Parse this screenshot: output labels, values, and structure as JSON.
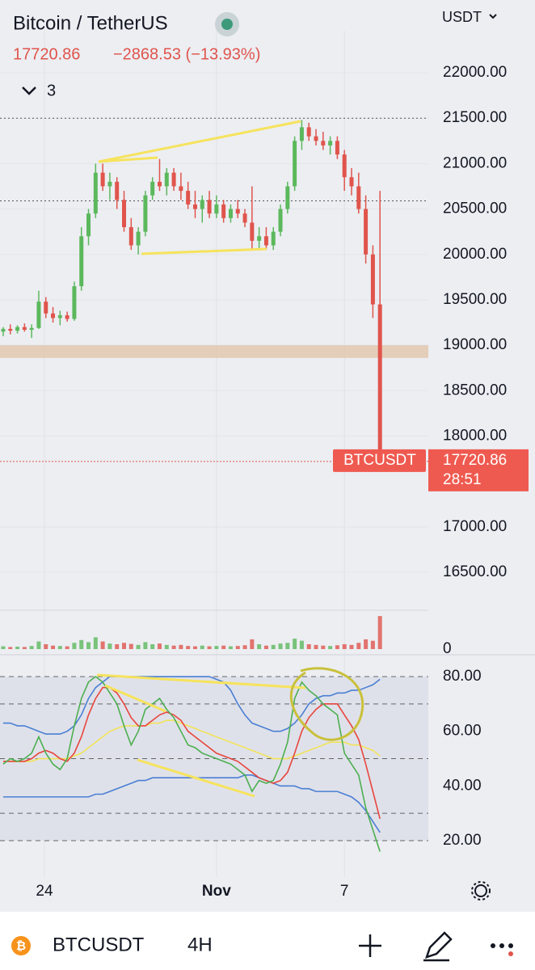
{
  "header": {
    "title": "Bitcoin / TetherUS",
    "change": "−2868.53 (−13.93%)",
    "indicators": "3",
    "currency": "USDT"
  },
  "chart_data": {
    "type": "candlestick",
    "symbol": "BTCUSDT",
    "price_line": 17720.86,
    "countdown": "28:51",
    "ylim": [
      16082,
      22463
    ],
    "yticks": [
      {
        "value": 16500,
        "label": "16500.00"
      },
      {
        "value": 17000,
        "label": "17000.00"
      },
      {
        "value": 18000,
        "label": "18000.00"
      },
      {
        "value": 18500,
        "label": "18500.00"
      },
      {
        "value": 19000,
        "label": "19000.00"
      },
      {
        "value": 19500,
        "label": "19500.00"
      },
      {
        "value": 20000,
        "label": "20000.00"
      },
      {
        "value": 20500,
        "label": "20500.00"
      },
      {
        "value": 21000,
        "label": "21000.00"
      },
      {
        "value": 21500,
        "label": "21500.00"
      },
      {
        "value": 22000,
        "label": "22000.00"
      }
    ],
    "xlim": [
      -0.45,
      59.8
    ],
    "xticks": [
      {
        "value": 5.8,
        "label": "24"
      },
      {
        "value": 30,
        "label": "Nov"
      },
      {
        "value": 48,
        "label": "7"
      }
    ],
    "hlines": [
      21500,
      20590
    ],
    "zone": [
      18860,
      19000
    ],
    "up_color": "#5cb85c",
    "down_color": "#e0544c",
    "x": [
      0,
      1,
      2,
      3,
      4,
      5,
      6,
      7,
      8,
      9,
      10,
      11,
      12,
      13,
      14,
      15,
      16,
      17,
      18,
      19,
      20,
      21,
      22,
      23,
      24,
      25,
      26,
      27,
      28,
      29,
      30,
      31,
      32,
      33,
      34,
      35,
      36,
      37,
      38,
      39,
      40,
      41,
      42,
      43,
      44,
      45,
      46,
      47,
      48,
      49,
      50,
      51,
      52,
      53
    ],
    "open": [
      19150,
      19180,
      19160,
      19200,
      19170,
      19190,
      19480,
      19350,
      19300,
      19330,
      19290,
      19650,
      20200,
      20450,
      20900,
      20750,
      20800,
      20600,
      20300,
      20100,
      20250,
      20650,
      20800,
      20750,
      20900,
      20750,
      20700,
      20550,
      20500,
      20600,
      20450,
      20550,
      20400,
      20500,
      20450,
      20350,
      20150,
      20200,
      20100,
      20250,
      20500,
      20750,
      21250,
      21400,
      21300,
      21250,
      21200,
      21250,
      21100,
      20850,
      20750,
      20500,
      20000,
      19450
    ],
    "high": [
      19200,
      19230,
      19220,
      19240,
      19230,
      19600,
      19530,
      19420,
      19380,
      19370,
      19700,
      20300,
      20500,
      21000,
      21000,
      20900,
      20850,
      20700,
      20400,
      20300,
      20700,
      20850,
      21050,
      20950,
      20950,
      20900,
      20800,
      20700,
      20650,
      20700,
      20650,
      20600,
      20550,
      20600,
      20500,
      20750,
      20300,
      20300,
      20300,
      20550,
      20800,
      21300,
      21480,
      21450,
      21380,
      21350,
      21300,
      21300,
      21150,
      20950,
      20900,
      20650,
      20100,
      20700
    ],
    "low": [
      19100,
      19120,
      19130,
      19150,
      19080,
      19180,
      19300,
      19250,
      19220,
      19260,
      19270,
      19600,
      20100,
      20400,
      20700,
      20600,
      20500,
      20250,
      20050,
      20000,
      20200,
      20600,
      20700,
      20650,
      20700,
      20600,
      20500,
      20400,
      20350,
      20400,
      20400,
      20350,
      20350,
      20400,
      20300,
      20050,
      20050,
      20050,
      20050,
      20200,
      20450,
      20700,
      21150,
      21250,
      21200,
      21150,
      21100,
      21050,
      20700,
      20650,
      20450,
      19900,
      19300,
      17700
    ],
    "close": [
      19180,
      19160,
      19200,
      19170,
      19190,
      19480,
      19350,
      19300,
      19330,
      19290,
      19650,
      20200,
      20450,
      20900,
      20750,
      20800,
      20600,
      20300,
      20100,
      20250,
      20650,
      20800,
      20750,
      20900,
      20750,
      20700,
      20550,
      20500,
      20600,
      20450,
      20550,
      20400,
      20500,
      20450,
      20350,
      20150,
      20200,
      20100,
      20250,
      20500,
      20750,
      21250,
      21400,
      21300,
      21250,
      21200,
      21250,
      21100,
      20850,
      20750,
      20500,
      20000,
      19450,
      17720.86
    ],
    "volume": {
      "ylim": [
        0,
        100
      ],
      "yticks": [
        0
      ],
      "values": [
        8,
        6,
        7,
        6,
        9,
        22,
        14,
        10,
        9,
        8,
        18,
        26,
        20,
        34,
        22,
        16,
        14,
        18,
        15,
        12,
        20,
        14,
        16,
        12,
        10,
        12,
        9,
        8,
        10,
        8,
        9,
        10,
        8,
        9,
        11,
        28,
        14,
        10,
        12,
        16,
        18,
        30,
        24,
        14,
        12,
        10,
        9,
        11,
        14,
        12,
        18,
        28,
        24,
        95
      ]
    },
    "rsi": {
      "type": "line",
      "ylim": [
        6.7,
        87.4
      ],
      "yticks": [
        {
          "value": 20,
          "label": "20.00"
        },
        {
          "value": 40,
          "label": "40.00"
        },
        {
          "value": 60,
          "label": "60.00"
        },
        {
          "value": 80,
          "label": "80.00"
        }
      ],
      "levels": [
        80,
        70,
        50,
        30,
        20
      ],
      "series": [
        {
          "color": "#4a7fd4",
          "values": [
            63,
            63,
            62,
            62,
            61,
            60,
            59,
            59,
            59,
            60,
            62,
            66,
            72,
            76,
            78,
            80,
            80,
            80,
            80,
            80,
            80,
            80,
            80,
            80,
            80,
            80,
            80,
            80,
            80,
            80,
            79,
            78,
            75,
            70,
            66,
            63,
            62,
            61,
            60,
            60,
            61,
            63,
            66,
            70,
            72,
            73,
            73,
            74,
            74,
            75,
            75,
            76,
            77,
            79
          ]
        },
        {
          "color": "#4a7fd4",
          "values": [
            36,
            36,
            36,
            36,
            36,
            36,
            36,
            36,
            36,
            36,
            36,
            36,
            36,
            37,
            37,
            38,
            39,
            40,
            41,
            42,
            42,
            43,
            43,
            43,
            43,
            43,
            43,
            43,
            43,
            43,
            43,
            43,
            43,
            43,
            44,
            44,
            43,
            42,
            41,
            40,
            40,
            40,
            39,
            39,
            38,
            38,
            38,
            38,
            37,
            36,
            34,
            31,
            27,
            23
          ]
        },
        {
          "color": "#f2e35a",
          "values": [
            49,
            49,
            49,
            49,
            49,
            50,
            50,
            50,
            50,
            50,
            51,
            52,
            54,
            56,
            58,
            60,
            61,
            62,
            62,
            62,
            62,
            63,
            63,
            64,
            64,
            63,
            62,
            61,
            60,
            59,
            58,
            57,
            56,
            55,
            54,
            53,
            52,
            51,
            50,
            50,
            50,
            51,
            52,
            53,
            54,
            55,
            56,
            56,
            56,
            55,
            55,
            54,
            53,
            51
          ]
        },
        {
          "color": "#e8453c",
          "values": [
            49,
            49,
            49,
            49,
            50,
            52,
            53,
            52,
            50,
            49,
            52,
            58,
            66,
            72,
            76,
            76,
            74,
            70,
            65,
            62,
            62,
            64,
            66,
            67,
            66,
            64,
            60,
            58,
            56,
            54,
            52,
            51,
            50,
            49,
            47,
            45,
            43,
            42,
            41,
            42,
            45,
            52,
            60,
            65,
            68,
            70,
            70,
            70,
            66,
            62,
            57,
            48,
            38,
            28
          ]
        },
        {
          "color": "#4caf50",
          "values": [
            48,
            50,
            49,
            50,
            52,
            58,
            52,
            48,
            46,
            50,
            62,
            72,
            78,
            80,
            78,
            74,
            70,
            62,
            55,
            60,
            68,
            70,
            72,
            68,
            65,
            60,
            55,
            54,
            52,
            51,
            50,
            49,
            48,
            46,
            44,
            38,
            42,
            41,
            42,
            48,
            56,
            72,
            78,
            75,
            73,
            70,
            68,
            66,
            52,
            48,
            44,
            32,
            24,
            16
          ]
        }
      ]
    }
  },
  "toolbar": {
    "symbol": "BTCUSDT",
    "interval": "4H"
  }
}
